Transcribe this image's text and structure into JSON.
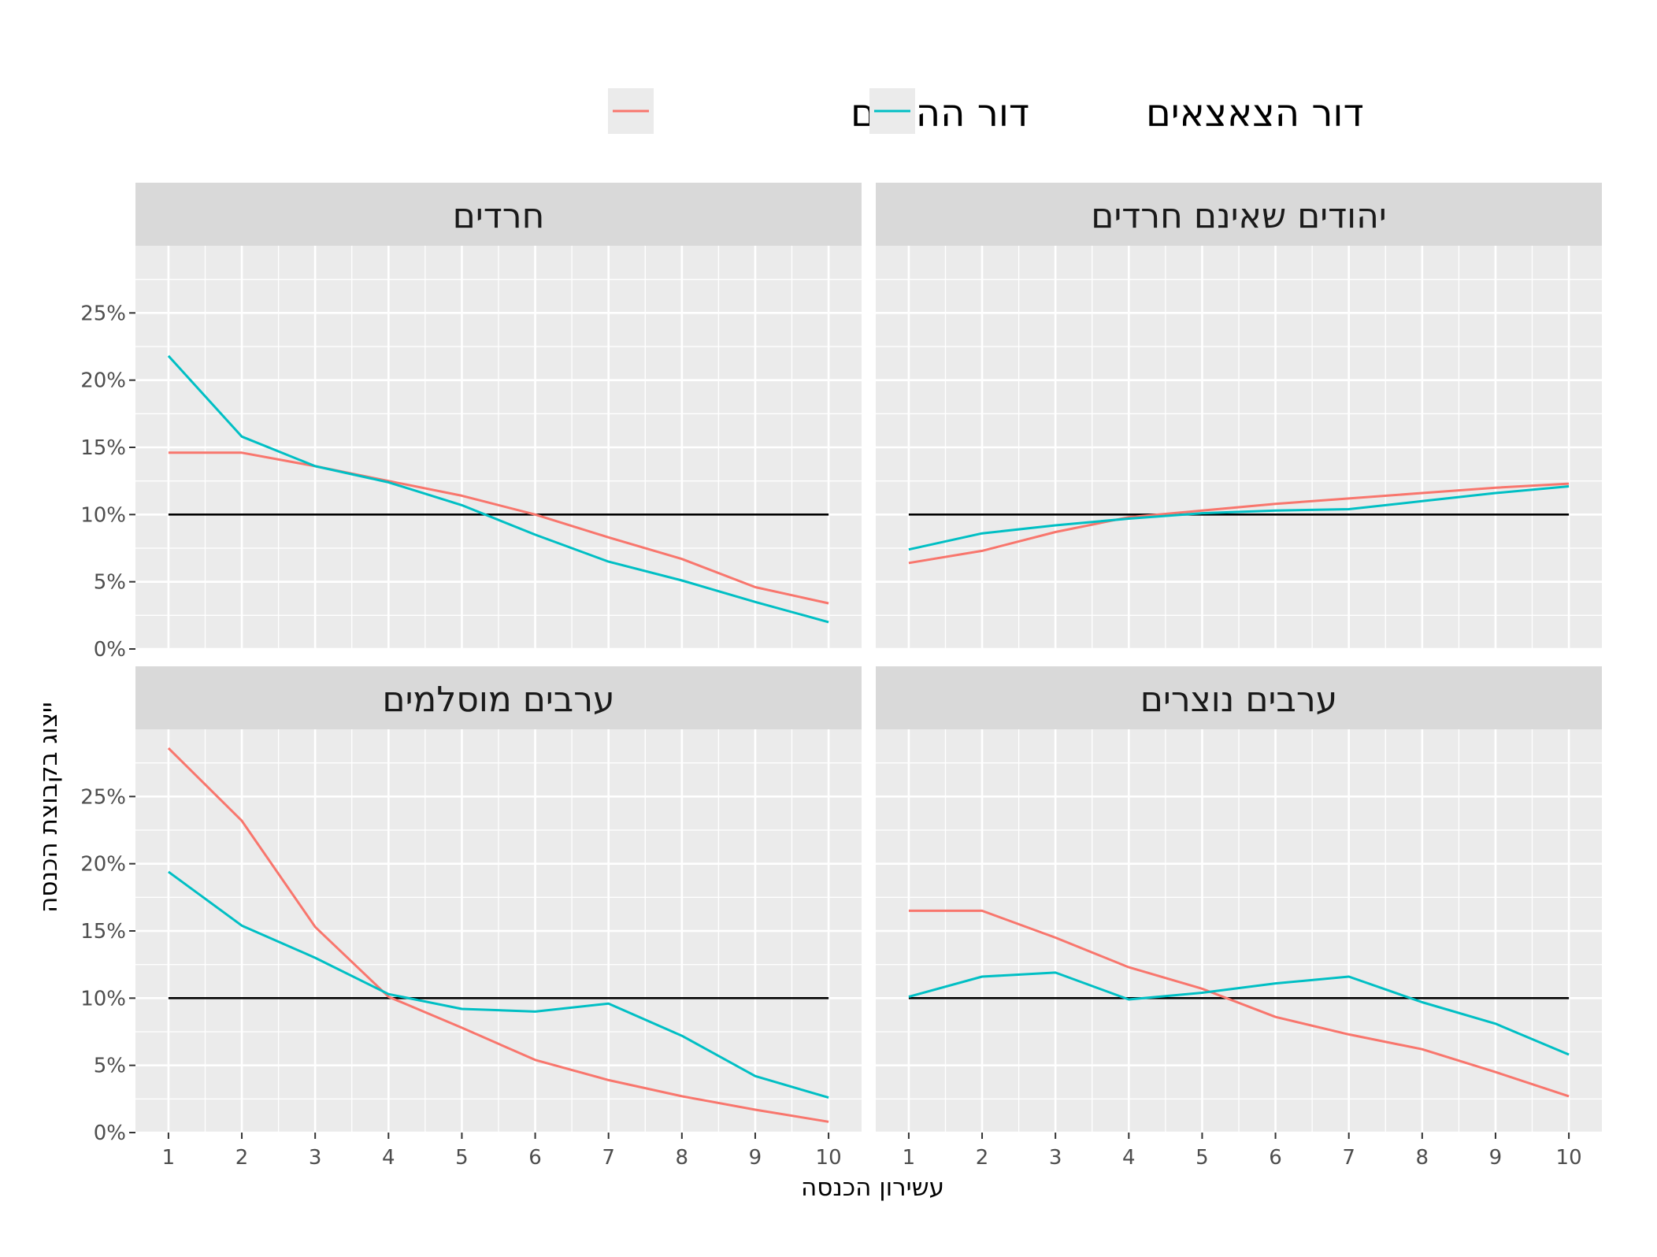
{
  "chart_data": {
    "type": "line",
    "title": "",
    "xlabel": "עשירון הכנסה",
    "ylabel": "ייצוג בקבוצת הכנסה",
    "x": [
      1,
      2,
      3,
      4,
      5,
      6,
      7,
      8,
      9,
      10
    ],
    "xticks": [
      "1",
      "2",
      "3",
      "4",
      "5",
      "6",
      "7",
      "8",
      "9",
      "10"
    ],
    "ylim": [
      0,
      30
    ],
    "yticks": [
      {
        "value": 0,
        "label": "0%"
      },
      {
        "value": 5,
        "label": "5%"
      },
      {
        "value": 10,
        "label": "10%"
      },
      {
        "value": 15,
        "label": "15%"
      },
      {
        "value": 20,
        "label": "20%"
      },
      {
        "value": 25,
        "label": "25%"
      }
    ],
    "reference_line": 10,
    "grid": true,
    "legend_position": "top",
    "legend": [
      {
        "name": "דור ההורים",
        "color": "#F8766D"
      },
      {
        "name": "דור הצאצאים",
        "color": "#00BFC4"
      }
    ],
    "panels": [
      {
        "title": "חרדים",
        "position": "top-left",
        "series": [
          {
            "name": "דור ההורים",
            "color": "#F8766D",
            "values": [
              14.6,
              14.6,
              13.6,
              12.5,
              11.4,
              10.0,
              8.3,
              6.7,
              4.6,
              3.4
            ]
          },
          {
            "name": "דור הצאצאים",
            "color": "#00BFC4",
            "values": [
              21.8,
              15.8,
              13.6,
              12.4,
              10.7,
              8.5,
              6.5,
              5.1,
              3.5,
              2.0
            ]
          }
        ]
      },
      {
        "title": "יהודים שאינם חרדים",
        "position": "top-right",
        "series": [
          {
            "name": "דור ההורים",
            "color": "#F8766D",
            "values": [
              6.4,
              7.3,
              8.7,
              9.8,
              10.3,
              10.8,
              11.2,
              11.6,
              12.0,
              12.3
            ]
          },
          {
            "name": "דור הצאצאים",
            "color": "#00BFC4",
            "values": [
              7.4,
              8.6,
              9.2,
              9.7,
              10.1,
              10.3,
              10.4,
              11.0,
              11.6,
              12.1
            ]
          }
        ]
      },
      {
        "title": "ערבים מוסלמים",
        "position": "bottom-left",
        "series": [
          {
            "name": "דור ההורים",
            "color": "#F8766D",
            "values": [
              28.6,
              23.2,
              15.3,
              10.1,
              7.8,
              5.4,
              3.9,
              2.7,
              1.7,
              0.8
            ]
          },
          {
            "name": "דור הצאצאים",
            "color": "#00BFC4",
            "values": [
              19.4,
              15.4,
              13.0,
              10.3,
              9.2,
              9.0,
              9.6,
              7.2,
              4.2,
              2.6
            ]
          }
        ]
      },
      {
        "title": "ערבים נוצרים",
        "position": "bottom-right",
        "series": [
          {
            "name": "דור ההורים",
            "color": "#F8766D",
            "values": [
              16.5,
              16.5,
              14.5,
              12.3,
              10.7,
              8.6,
              7.3,
              6.2,
              4.5,
              2.7
            ]
          },
          {
            "name": "דור הצאצאים",
            "color": "#00BFC4",
            "values": [
              10.1,
              11.6,
              11.9,
              9.9,
              10.4,
              11.1,
              11.6,
              9.7,
              8.1,
              5.8
            ]
          }
        ]
      }
    ]
  }
}
